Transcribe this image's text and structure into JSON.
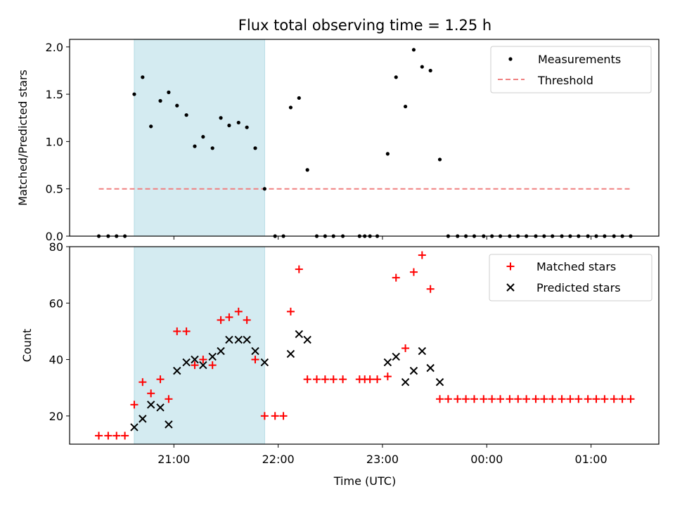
{
  "chart_data": {
    "type": "scatter",
    "title": "Flux total observing time = 1.25 h",
    "xlabel": "Time (UTC)",
    "x_ticks": [
      "21:00",
      "22:00",
      "23:00",
      "00:00",
      "01:00"
    ],
    "x_tick_hours": [
      21,
      22,
      23,
      24,
      25
    ],
    "xlim_hours": [
      20.0,
      25.65
    ],
    "shaded_interval_hours": [
      20.62,
      21.87
    ],
    "shade_color": "#d4ebf1",
    "top_panel": {
      "ylabel": "Matched/Predicted stars",
      "ylim": [
        0,
        2.08
      ],
      "yticks": [
        "0.0",
        "0.5",
        "1.0",
        "1.5",
        "2.0"
      ],
      "ytick_values": [
        0,
        0.5,
        1.0,
        1.5,
        2.0
      ],
      "legend": [
        "Measurements",
        "Threshold"
      ],
      "threshold": {
        "value": 0.5,
        "x_range_hours": [
          20.28,
          25.37
        ],
        "color": "#f08080"
      },
      "measurements": [
        [
          20.28,
          0
        ],
        [
          20.37,
          0
        ],
        [
          20.45,
          0
        ],
        [
          20.53,
          0
        ],
        [
          20.62,
          1.5
        ],
        [
          20.7,
          1.68
        ],
        [
          20.78,
          1.16
        ],
        [
          20.87,
          1.43
        ],
        [
          20.95,
          1.52
        ],
        [
          21.03,
          1.38
        ],
        [
          21.12,
          1.28
        ],
        [
          21.2,
          0.95
        ],
        [
          21.28,
          1.05
        ],
        [
          21.37,
          0.93
        ],
        [
          21.45,
          1.25
        ],
        [
          21.53,
          1.17
        ],
        [
          21.62,
          1.2
        ],
        [
          21.7,
          1.15
        ],
        [
          21.78,
          0.93
        ],
        [
          21.87,
          0.5
        ],
        [
          21.97,
          0
        ],
        [
          22.05,
          0
        ],
        [
          22.12,
          1.36
        ],
        [
          22.2,
          1.46
        ],
        [
          22.28,
          0.7
        ],
        [
          22.37,
          0
        ],
        [
          22.45,
          0
        ],
        [
          22.53,
          0
        ],
        [
          22.62,
          0
        ],
        [
          22.78,
          0
        ],
        [
          22.83,
          0
        ],
        [
          22.88,
          0
        ],
        [
          22.95,
          0
        ],
        [
          23.05,
          0.87
        ],
        [
          23.13,
          1.68
        ],
        [
          23.22,
          1.37
        ],
        [
          23.3,
          1.97
        ],
        [
          23.38,
          1.79
        ],
        [
          23.46,
          1.75
        ],
        [
          23.55,
          0.81
        ],
        [
          23.63,
          0
        ],
        [
          23.72,
          0
        ],
        [
          23.8,
          0
        ],
        [
          23.88,
          0
        ],
        [
          23.97,
          0
        ],
        [
          24.05,
          0
        ],
        [
          24.13,
          0
        ],
        [
          24.22,
          0
        ],
        [
          24.3,
          0
        ],
        [
          24.38,
          0
        ],
        [
          24.47,
          0
        ],
        [
          24.55,
          0
        ],
        [
          24.63,
          0
        ],
        [
          24.72,
          0
        ],
        [
          24.8,
          0
        ],
        [
          24.88,
          0
        ],
        [
          24.97,
          0
        ],
        [
          25.05,
          0
        ],
        [
          25.13,
          0
        ],
        [
          25.22,
          0
        ],
        [
          25.3,
          0
        ],
        [
          25.38,
          0
        ]
      ]
    },
    "bottom_panel": {
      "ylabel": "Count",
      "ylim": [
        10,
        80
      ],
      "yticks": [
        "20",
        "40",
        "60",
        "80"
      ],
      "ytick_values": [
        20,
        40,
        60,
        80
      ],
      "legend": [
        "Matched stars",
        "Predicted stars"
      ],
      "matched_color": "#ff0000",
      "predicted_color": "#000000",
      "matched": [
        [
          20.28,
          13
        ],
        [
          20.37,
          13
        ],
        [
          20.45,
          13
        ],
        [
          20.53,
          13
        ],
        [
          20.62,
          24
        ],
        [
          20.7,
          32
        ],
        [
          20.78,
          28
        ],
        [
          20.87,
          33
        ],
        [
          20.95,
          26
        ],
        [
          21.03,
          50
        ],
        [
          21.12,
          50
        ],
        [
          21.2,
          38
        ],
        [
          21.28,
          40
        ],
        [
          21.37,
          38
        ],
        [
          21.45,
          54
        ],
        [
          21.53,
          55
        ],
        [
          21.62,
          57
        ],
        [
          21.7,
          54
        ],
        [
          21.78,
          40
        ],
        [
          21.87,
          20
        ],
        [
          21.97,
          20
        ],
        [
          22.05,
          20
        ],
        [
          22.12,
          57
        ],
        [
          22.2,
          72
        ],
        [
          22.28,
          33
        ],
        [
          22.37,
          33
        ],
        [
          22.45,
          33
        ],
        [
          22.53,
          33
        ],
        [
          22.62,
          33
        ],
        [
          22.78,
          33
        ],
        [
          22.83,
          33
        ],
        [
          22.88,
          33
        ],
        [
          22.95,
          33
        ],
        [
          23.05,
          34
        ],
        [
          23.13,
          69
        ],
        [
          23.22,
          44
        ],
        [
          23.3,
          71
        ],
        [
          23.38,
          77
        ],
        [
          23.46,
          65
        ],
        [
          23.55,
          26
        ],
        [
          23.63,
          26
        ],
        [
          23.72,
          26
        ],
        [
          23.8,
          26
        ],
        [
          23.88,
          26
        ],
        [
          23.97,
          26
        ],
        [
          24.05,
          26
        ],
        [
          24.13,
          26
        ],
        [
          24.22,
          26
        ],
        [
          24.3,
          26
        ],
        [
          24.38,
          26
        ],
        [
          24.47,
          26
        ],
        [
          24.55,
          26
        ],
        [
          24.63,
          26
        ],
        [
          24.72,
          26
        ],
        [
          24.8,
          26
        ],
        [
          24.88,
          26
        ],
        [
          24.97,
          26
        ],
        [
          25.05,
          26
        ],
        [
          25.13,
          26
        ],
        [
          25.22,
          26
        ],
        [
          25.3,
          26
        ],
        [
          25.38,
          26
        ]
      ],
      "predicted": [
        [
          20.62,
          16
        ],
        [
          20.7,
          19
        ],
        [
          20.78,
          24
        ],
        [
          20.87,
          23
        ],
        [
          20.95,
          17
        ],
        [
          21.03,
          36
        ],
        [
          21.12,
          39
        ],
        [
          21.2,
          40
        ],
        [
          21.28,
          38
        ],
        [
          21.37,
          41
        ],
        [
          21.45,
          43
        ],
        [
          21.53,
          47
        ],
        [
          21.62,
          47
        ],
        [
          21.7,
          47
        ],
        [
          21.78,
          43
        ],
        [
          21.87,
          39
        ],
        [
          22.12,
          42
        ],
        [
          22.2,
          49
        ],
        [
          22.28,
          47
        ],
        [
          23.05,
          39
        ],
        [
          23.13,
          41
        ],
        [
          23.22,
          32
        ],
        [
          23.3,
          36
        ],
        [
          23.38,
          43
        ],
        [
          23.46,
          37
        ],
        [
          23.55,
          32
        ]
      ]
    }
  }
}
